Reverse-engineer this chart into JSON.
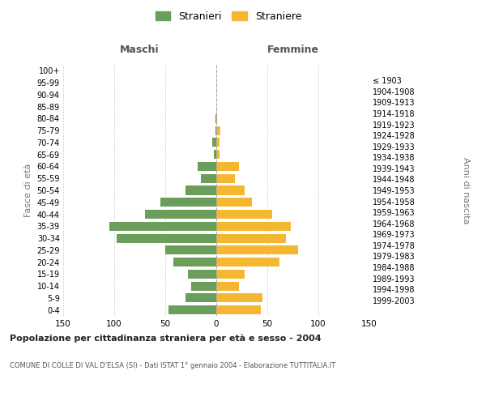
{
  "age_groups": [
    "0-4",
    "5-9",
    "10-14",
    "15-19",
    "20-24",
    "25-29",
    "30-34",
    "35-39",
    "40-44",
    "45-49",
    "50-54",
    "55-59",
    "60-64",
    "65-69",
    "70-74",
    "75-79",
    "80-84",
    "85-89",
    "90-94",
    "95-99",
    "100+"
  ],
  "birth_years": [
    "1999-2003",
    "1994-1998",
    "1989-1993",
    "1984-1988",
    "1979-1983",
    "1974-1978",
    "1969-1973",
    "1964-1968",
    "1959-1963",
    "1954-1958",
    "1949-1953",
    "1944-1948",
    "1939-1943",
    "1934-1938",
    "1929-1933",
    "1924-1928",
    "1919-1923",
    "1914-1918",
    "1909-1913",
    "1904-1908",
    "≤ 1903"
  ],
  "maschi": [
    47,
    30,
    25,
    28,
    42,
    50,
    98,
    105,
    70,
    55,
    30,
    15,
    18,
    2,
    4,
    1,
    1,
    0,
    0,
    0,
    0
  ],
  "femmine": [
    44,
    45,
    22,
    28,
    62,
    80,
    68,
    73,
    55,
    35,
    28,
    18,
    22,
    3,
    3,
    4,
    1,
    0,
    0,
    0,
    0
  ],
  "color_maschi": "#6a9e5a",
  "color_femmine": "#f5b731",
  "title": "Popolazione per cittadinanza straniera per età e sesso - 2004",
  "subtitle": "COMUNE DI COLLE DI VAL D'ELSA (SI) - Dati ISTAT 1° gennaio 2004 - Elaborazione TUTTITALIA.IT",
  "ylabel_left": "Fasce di età",
  "ylabel_right": "Anni di nascita",
  "xlabel_maschi": "Maschi",
  "xlabel_femmine": "Femmine",
  "legend_stranieri": "Stranieri",
  "legend_straniere": "Straniere",
  "xlim": 150,
  "background_color": "#ffffff",
  "grid_color": "#cccccc"
}
